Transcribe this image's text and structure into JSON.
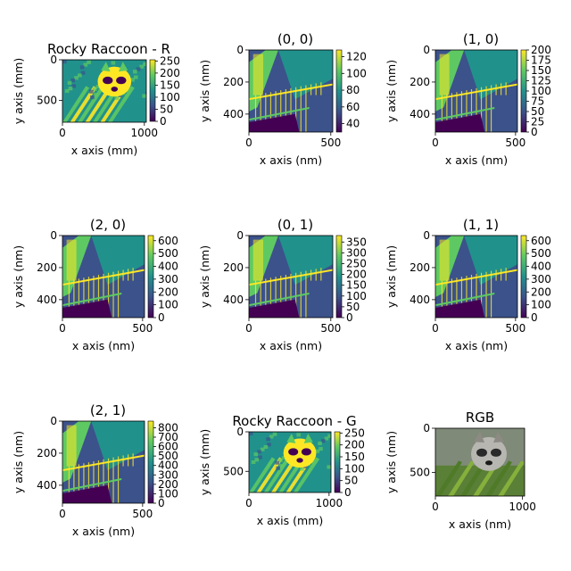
{
  "figure": {
    "colormap": "viridis",
    "colormap_colors": [
      "#440154",
      "#3b528b",
      "#21918c",
      "#5ec962",
      "#fde725"
    ]
  },
  "chart_data": [
    {
      "type": "heatmap",
      "title": "Rocky Raccoon - R",
      "xlabel": "x axis (mm)",
      "ylabel": "y axis (mm)",
      "xlim": [
        0,
        1024
      ],
      "ylim": [
        768,
        0
      ],
      "xticks": [
        0,
        1000
      ],
      "yticks": [
        0,
        500
      ],
      "colorbar": {
        "min": 0,
        "max": 255,
        "ticks": [
          0,
          50,
          100,
          150,
          200,
          250
        ]
      },
      "image": "raccoon red channel (scipy face)"
    },
    {
      "type": "heatmap",
      "title": "(0, 0)",
      "xlabel": "x axis (nm)",
      "ylabel": "y axis (nm)",
      "xlim": [
        0,
        512
      ],
      "ylim": [
        512,
        0
      ],
      "xticks": [
        0,
        500
      ],
      "yticks": [
        0,
        200,
        400
      ],
      "colorbar": {
        "min": 30,
        "max": 128,
        "ticks": [
          40,
          60,
          80,
          100,
          120
        ]
      },
      "image": "staircase scene (scipy ascent)"
    },
    {
      "type": "heatmap",
      "title": "(1, 0)",
      "xlabel": "x axis (nm)",
      "ylabel": "y axis (nm)",
      "xlim": [
        0,
        512
      ],
      "ylim": [
        512,
        0
      ],
      "xticks": [
        0,
        500
      ],
      "yticks": [
        0,
        200,
        400
      ],
      "colorbar": {
        "min": 0,
        "max": 200,
        "ticks": [
          0,
          25,
          50,
          75,
          100,
          125,
          150,
          175,
          200
        ]
      },
      "image": "staircase scene (scipy ascent)"
    },
    {
      "type": "heatmap",
      "title": "(2, 0)",
      "xlabel": "x axis (nm)",
      "ylabel": "y axis (nm)",
      "xlim": [
        0,
        512
      ],
      "ylim": [
        512,
        0
      ],
      "xticks": [
        0,
        500
      ],
      "yticks": [
        0,
        200,
        400
      ],
      "colorbar": {
        "min": 0,
        "max": 640,
        "ticks": [
          0,
          100,
          200,
          300,
          400,
          500,
          600
        ]
      },
      "image": "staircase scene (scipy ascent)"
    },
    {
      "type": "heatmap",
      "title": "(0, 1)",
      "xlabel": "x axis (nm)",
      "ylabel": "y axis (nm)",
      "xlim": [
        0,
        512
      ],
      "ylim": [
        512,
        0
      ],
      "xticks": [
        0,
        500
      ],
      "yticks": [
        0,
        200,
        400
      ],
      "colorbar": {
        "min": 0,
        "max": 380,
        "ticks": [
          0,
          50,
          100,
          150,
          200,
          250,
          300,
          350
        ]
      },
      "image": "staircase scene (scipy ascent)"
    },
    {
      "type": "heatmap",
      "title": "(1, 1)",
      "xlabel": "x axis (nm)",
      "ylabel": "y axis (nm)",
      "xlim": [
        0,
        512
      ],
      "ylim": [
        512,
        0
      ],
      "xticks": [
        0,
        500
      ],
      "yticks": [
        0,
        200,
        400
      ],
      "colorbar": {
        "min": 0,
        "max": 640,
        "ticks": [
          0,
          100,
          200,
          300,
          400,
          500,
          600
        ]
      },
      "image": "staircase scene (scipy ascent)"
    },
    {
      "type": "heatmap",
      "title": "(2, 1)",
      "xlabel": "x axis (nm)",
      "ylabel": "y axis (nm)",
      "xlim": [
        0,
        512
      ],
      "ylim": [
        512,
        0
      ],
      "xticks": [
        0,
        500
      ],
      "yticks": [
        0,
        200,
        400
      ],
      "colorbar": {
        "min": 0,
        "max": 870,
        "ticks": [
          0,
          100,
          200,
          300,
          400,
          500,
          600,
          700,
          800
        ]
      },
      "image": "staircase scene (scipy ascent)"
    },
    {
      "type": "heatmap",
      "title": "Rocky Raccoon - G",
      "xlabel": "x axis (mm)",
      "ylabel": "y axis (mm)",
      "xlim": [
        0,
        1024
      ],
      "ylim": [
        768,
        0
      ],
      "xticks": [
        0,
        1000
      ],
      "yticks": [
        0,
        500
      ],
      "colorbar": {
        "min": 0,
        "max": 255,
        "ticks": [
          0,
          50,
          100,
          150,
          200,
          250
        ]
      },
      "image": "raccoon green channel (scipy face)"
    },
    {
      "type": "heatmap",
      "title": "RGB",
      "xlabel": "x axis (nm)",
      "ylabel": "y axis (nm)",
      "xlim": [
        0,
        1024
      ],
      "ylim": [
        768,
        0
      ],
      "xticks": [
        0,
        1000
      ],
      "yticks": [
        0,
        500
      ],
      "image": "raccoon full color photo (scipy face)"
    }
  ]
}
